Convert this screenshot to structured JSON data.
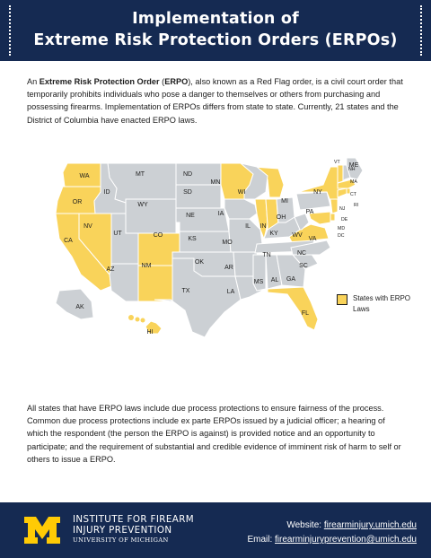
{
  "header": {
    "title_line1": "Implementation of",
    "title_line2": "Extreme Risk Protection Orders (ERPOs)"
  },
  "intro": {
    "lead": "An ",
    "term": "Extreme Risk Protection Order",
    "open_paren": " (",
    "abbr": "ERPO",
    "rest": "), also known as a Red Flag order, is a civil court order that temporarily prohibits individuals who pose a danger to themselves or others from purchasing and possessing firearms. Implementation of ERPOs differs from state to state. Currently, 21 states and the District of Columbia have enacted ERPO laws."
  },
  "map": {
    "colors": {
      "erpo": "#f9d35a",
      "non_erpo": "#ccd0d4"
    },
    "states": [
      {
        "code": "WA",
        "erpo": true
      },
      {
        "code": "OR",
        "erpo": true
      },
      {
        "code": "CA",
        "erpo": true
      },
      {
        "code": "NV",
        "erpo": true
      },
      {
        "code": "CO",
        "erpo": true
      },
      {
        "code": "NM",
        "erpo": true
      },
      {
        "code": "MN",
        "erpo": true
      },
      {
        "code": "IL",
        "erpo": true
      },
      {
        "code": "IN",
        "erpo": true
      },
      {
        "code": "MI",
        "erpo": true
      },
      {
        "code": "NY",
        "erpo": true
      },
      {
        "code": "VA",
        "erpo": true
      },
      {
        "code": "DE",
        "erpo": true
      },
      {
        "code": "MD",
        "erpo": true
      },
      {
        "code": "NJ",
        "erpo": true
      },
      {
        "code": "CT",
        "erpo": true
      },
      {
        "code": "RI",
        "erpo": true
      },
      {
        "code": "MA",
        "erpo": true
      },
      {
        "code": "VT",
        "erpo": true
      },
      {
        "code": "FL",
        "erpo": true
      },
      {
        "code": "HI",
        "erpo": true
      },
      {
        "code": "DC",
        "erpo": true
      },
      {
        "code": "MT",
        "erpo": false
      },
      {
        "code": "ID",
        "erpo": false
      },
      {
        "code": "WY",
        "erpo": false
      },
      {
        "code": "UT",
        "erpo": false
      },
      {
        "code": "AZ",
        "erpo": false
      },
      {
        "code": "ND",
        "erpo": false
      },
      {
        "code": "SD",
        "erpo": false
      },
      {
        "code": "NE",
        "erpo": false
      },
      {
        "code": "KS",
        "erpo": false
      },
      {
        "code": "OK",
        "erpo": false
      },
      {
        "code": "TX",
        "erpo": false
      },
      {
        "code": "IA",
        "erpo": false
      },
      {
        "code": "MO",
        "erpo": false
      },
      {
        "code": "AR",
        "erpo": false
      },
      {
        "code": "LA",
        "erpo": false
      },
      {
        "code": "WI",
        "erpo": false
      },
      {
        "code": "KY",
        "erpo": false
      },
      {
        "code": "TN",
        "erpo": false
      },
      {
        "code": "MS",
        "erpo": false
      },
      {
        "code": "AL",
        "erpo": false
      },
      {
        "code": "GA",
        "erpo": false
      },
      {
        "code": "SC",
        "erpo": false
      },
      {
        "code": "NC",
        "erpo": false
      },
      {
        "code": "OH",
        "erpo": false
      },
      {
        "code": "WV",
        "erpo": false
      },
      {
        "code": "PA",
        "erpo": false
      },
      {
        "code": "ME",
        "erpo": false
      },
      {
        "code": "NH",
        "erpo": false
      },
      {
        "code": "AK",
        "erpo": false
      }
    ]
  },
  "legend": {
    "label": "States with ERPO Laws"
  },
  "outro": {
    "text": "All states that have ERPO laws include due process protections to ensure fairness of the process. Common due process protections include ex parte ERPOs issued by a judicial officer; a hearing of which the respondent (the person the ERPO is against) is provided notice and an opportunity to participate; and the requirement of substantial and credible evidence of imminent risk of harm to self or others to issue a ERPO."
  },
  "footer": {
    "org_line1": "INSTITUTE FOR FIREARM",
    "org_line2": "INJURY PREVENTION",
    "org_line3": "UNIVERSITY OF MICHIGAN",
    "logo_letter": "M",
    "website_label": "Website: ",
    "website_value": "firearminjury.umich.edu",
    "email_label": "Email: ",
    "email_value": "firearminjuryprevention@umich.edu"
  }
}
